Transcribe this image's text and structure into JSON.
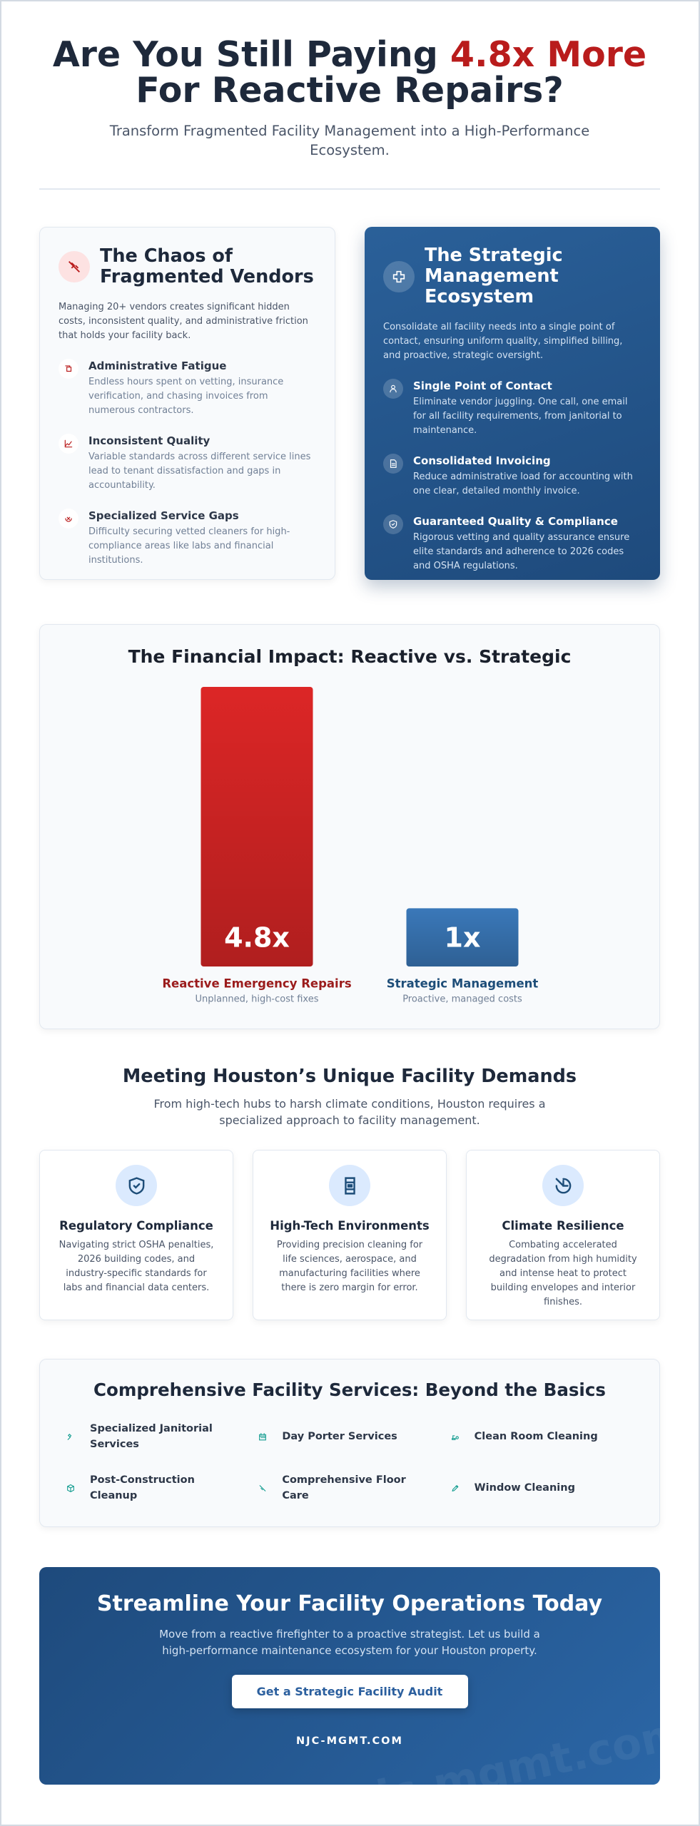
{
  "header": {
    "title_start": "Are You Still Paying",
    "title_highlight": "4.8x More",
    "title_end": "For Reactive Repairs?",
    "subtitle": "Transform Fragmented Facility Management into a High-Performance Ecosystem."
  },
  "chaos": {
    "title": "The Chaos of Fragmented Vendors",
    "intro": "Managing 20+ vendors creates significant hidden costs, inconsistent quality, and administrative friction that holds your facility back.",
    "items": [
      {
        "title": "Administrative Fatigue",
        "text": "Endless hours spent on vetting, insurance verification, and chasing invoices from numerous contractors."
      },
      {
        "title": "Inconsistent Quality",
        "text": "Variable standards across different service lines lead to tenant dissatisfaction and gaps in accountability."
      },
      {
        "title": "Specialized Service Gaps",
        "text": "Difficulty securing vetted cleaners for high-compliance areas like labs and financial institutions."
      }
    ]
  },
  "strategic": {
    "title": "The Strategic Management Ecosystem",
    "intro": "Consolidate all facility needs into a single point of contact, ensuring uniform quality, simplified billing, and proactive, strategic oversight.",
    "items": [
      {
        "title": "Single Point of Contact",
        "text": "Eliminate vendor juggling. One call, one email for all facility requirements, from janitorial to maintenance."
      },
      {
        "title": "Consolidated Invoicing",
        "text": "Reduce administrative load for accounting with one clear, detailed monthly invoice."
      },
      {
        "title": "Guaranteed Quality & Compliance",
        "text": "Rigorous vetting and quality assurance ensure elite standards and adherence to 2026 codes and OSHA regulations."
      }
    ]
  },
  "chart_data": {
    "type": "bar",
    "title": "The Financial Impact: Reactive vs. Strategic",
    "categories": [
      "Reactive Emergency Repairs",
      "Strategic Management"
    ],
    "category_subtitles": [
      "Unplanned, high-cost fixes",
      "Proactive, managed costs"
    ],
    "values": [
      4.8,
      1
    ],
    "value_labels": [
      "4.8x",
      "1x"
    ],
    "colors": [
      "#dc2626",
      "#3a78b9"
    ],
    "label_colors": [
      "#9b1c1c",
      "#1e4e79"
    ]
  },
  "houston": {
    "title": "Meeting Houston’s Unique Facility Demands",
    "subtitle": "From high-tech hubs to harsh climate conditions, Houston requires a specialized approach to facility management.",
    "cards": [
      {
        "title": "Regulatory Compliance",
        "text": "Navigating strict OSHA penalties, 2026 building codes, and industry-specific standards for labs and financial data centers."
      },
      {
        "title": "High-Tech Environments",
        "text": "Providing precision cleaning for life sciences, aerospace, and manufacturing facilities where there is zero margin for error."
      },
      {
        "title": "Climate Resilience",
        "text": "Combating accelerated degradation from high humidity and intense heat to protect building envelopes and interior finishes."
      }
    ]
  },
  "services": {
    "title": "Comprehensive Facility Services: Beyond the Basics",
    "items": [
      "Specialized Janitorial Services",
      "Day Porter Services",
      "Clean Room Cleaning",
      "Post-Construction Cleanup",
      "Comprehensive Floor Care",
      "Window Cleaning"
    ]
  },
  "cta": {
    "title": "Streamline Your Facility Operations Today",
    "text": "Move from a reactive firefighter to a proactive strategist. Let us build a high-performance maintenance ecosystem for your Houston property.",
    "button": "Get a Strategic Facility Audit",
    "footer": "NJC-MGMT.COM",
    "watermark": "njc-mgmt.com"
  }
}
